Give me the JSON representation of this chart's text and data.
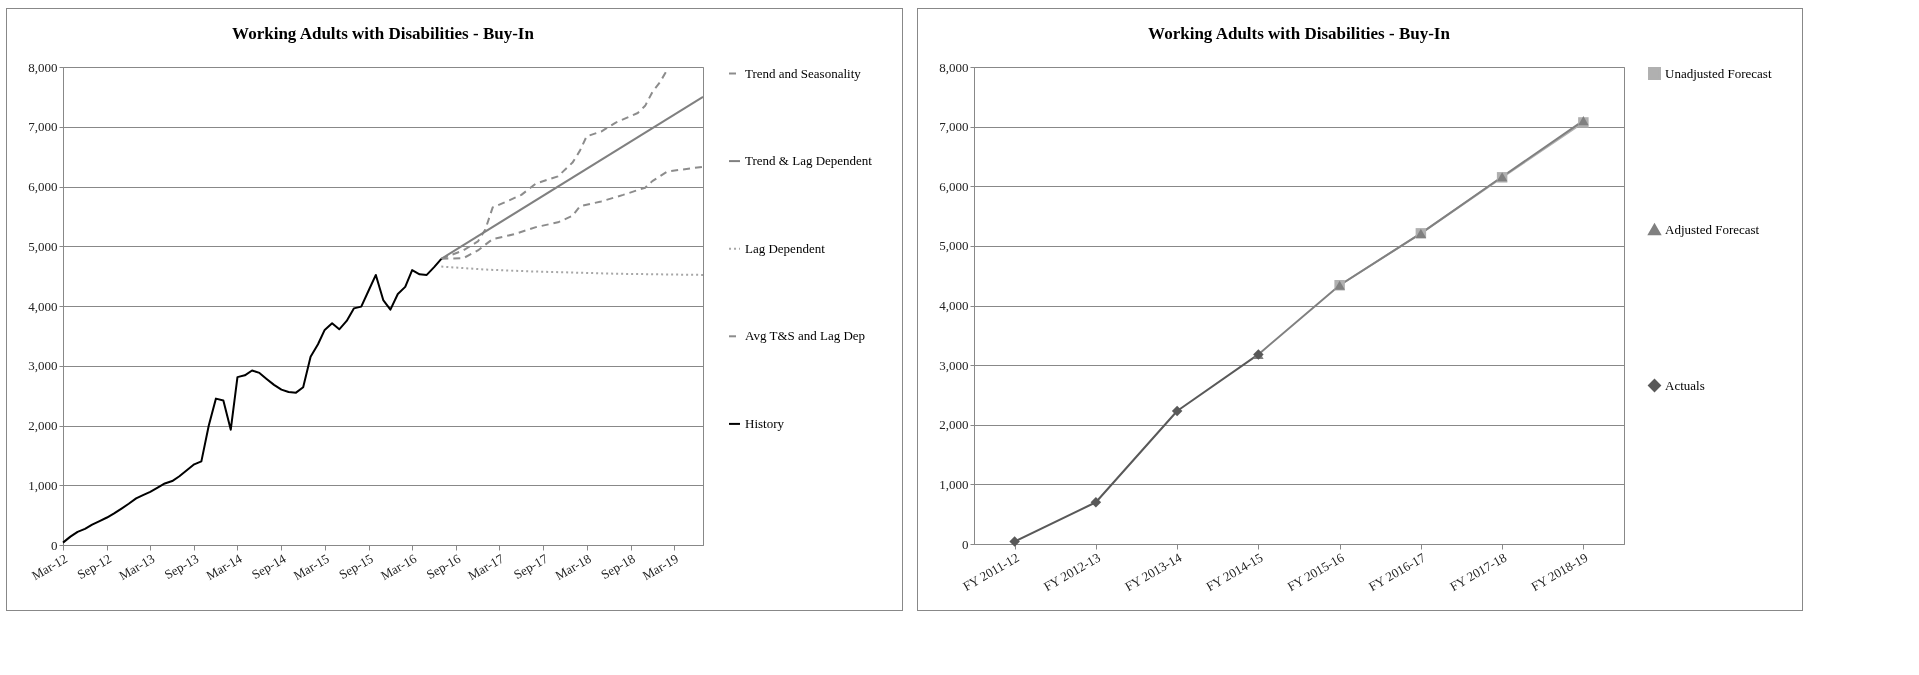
{
  "chart_data": [
    {
      "type": "line",
      "title": "Working Adults with Disabilities - Buy-In",
      "xlim": [
        "2012-03",
        "2019-07"
      ],
      "xticks": [
        {
          "value": "2012-03",
          "label": "Mar-12"
        },
        {
          "value": "2012-09",
          "label": "Sep-12"
        },
        {
          "value": "2013-03",
          "label": "Mar-13"
        },
        {
          "value": "2013-09",
          "label": "Sep-13"
        },
        {
          "value": "2014-03",
          "label": "Mar-14"
        },
        {
          "value": "2014-09",
          "label": "Sep-14"
        },
        {
          "value": "2015-03",
          "label": "Mar-15"
        },
        {
          "value": "2015-09",
          "label": "Sep-15"
        },
        {
          "value": "2016-03",
          "label": "Mar-16"
        },
        {
          "value": "2016-09",
          "label": "Sep-16"
        },
        {
          "value": "2017-03",
          "label": "Mar-17"
        },
        {
          "value": "2017-09",
          "label": "Sep-17"
        },
        {
          "value": "2018-03",
          "label": "Mar-18"
        },
        {
          "value": "2018-09",
          "label": "Sep-18"
        },
        {
          "value": "2019-03",
          "label": "Mar-19"
        }
      ],
      "ylim": [
        0,
        8000
      ],
      "yticks": [
        0,
        {
          "value": 1000,
          "label": "1,000"
        },
        {
          "value": 2000,
          "label": "2,000"
        },
        {
          "value": 3000,
          "label": "3,000"
        },
        {
          "value": 4000,
          "label": "4,000"
        },
        {
          "value": 5000,
          "label": "5,000"
        },
        {
          "value": 6000,
          "label": "6,000"
        },
        {
          "value": 7000,
          "label": "7,000"
        },
        {
          "value": 8000,
          "label": "8,000"
        }
      ],
      "grid": "y",
      "legend": "right",
      "series": [
        {
          "name": "Trend and Seasonality",
          "color": "#8c8c8c",
          "line_style": "dashed",
          "x": [
            "2016-07",
            "2016-10",
            "2016-12",
            "2017-01",
            "2017-02",
            "2017-04",
            "2017-06",
            "2017-08",
            "2017-11",
            "2018-01",
            "2018-02",
            "2018-03",
            "2018-05",
            "2018-07",
            "2018-10",
            "2018-11",
            "2018-12",
            "2019-01",
            "2019-02"
          ],
          "values": [
            4790,
            4930,
            5080,
            5280,
            5650,
            5750,
            5860,
            6050,
            6170,
            6400,
            6600,
            6840,
            6920,
            7070,
            7230,
            7350,
            7580,
            7740,
            7950
          ]
        },
        {
          "name": "Trend & Lag Dependent",
          "color": "#808080",
          "line_style": "solid",
          "x": [
            "2016-07",
            "2019-07"
          ],
          "values": [
            4790,
            7500
          ]
        },
        {
          "name": "Lag Dependent",
          "color": "#a6a6a6",
          "line_style": "dotted",
          "x": [
            "2016-07",
            "2017-01",
            "2017-07",
            "2018-01",
            "2018-07",
            "2019-01",
            "2019-07"
          ],
          "values": [
            4660,
            4610,
            4580,
            4560,
            4540,
            4530,
            4520
          ]
        },
        {
          "name": "Avg T&S and Lag Dep",
          "color": "#8c8c8c",
          "line_style": "dashed",
          "x": [
            "2016-07",
            "2016-10",
            "2016-12",
            "2017-02",
            "2017-05",
            "2017-08",
            "2017-11",
            "2018-01",
            "2018-02",
            "2018-05",
            "2018-08",
            "2018-11",
            "2018-12",
            "2019-02",
            "2019-07"
          ],
          "values": [
            4790,
            4800,
            4930,
            5120,
            5200,
            5320,
            5400,
            5510,
            5670,
            5750,
            5860,
            5980,
            6090,
            6250,
            6330
          ]
        },
        {
          "name": "History",
          "color": "#000000",
          "line_style": "solid",
          "x": [
            "2012-03",
            "2012-04",
            "2012-05",
            "2012-06",
            "2012-07",
            "2012-08",
            "2012-09",
            "2012-10",
            "2012-11",
            "2012-12",
            "2013-01",
            "2013-02",
            "2013-03",
            "2013-04",
            "2013-05",
            "2013-06",
            "2013-07",
            "2013-08",
            "2013-09",
            "2013-10",
            "2013-11",
            "2013-12",
            "2014-01",
            "2014-02",
            "2014-03",
            "2014-04",
            "2014-05",
            "2014-06",
            "2014-07",
            "2014-08",
            "2014-09",
            "2014-10",
            "2014-11",
            "2014-12",
            "2015-01",
            "2015-02",
            "2015-03",
            "2015-04",
            "2015-05",
            "2015-06",
            "2015-07",
            "2015-08",
            "2015-09",
            "2015-10",
            "2015-11",
            "2015-12",
            "2016-01",
            "2016-02",
            "2016-03",
            "2016-04",
            "2016-05",
            "2016-06",
            "2016-07"
          ],
          "values": [
            40,
            140,
            220,
            270,
            340,
            400,
            460,
            530,
            610,
            690,
            780,
            840,
            890,
            960,
            1030,
            1070,
            1150,
            1250,
            1350,
            1400,
            2000,
            2450,
            2420,
            1930,
            2810,
            2840,
            2920,
            2880,
            2780,
            2680,
            2600,
            2560,
            2550,
            2640,
            3150,
            3360,
            3600,
            3710,
            3610,
            3750,
            3960,
            3990,
            4260,
            4520,
            4100,
            3940,
            4200,
            4320,
            4600,
            4530,
            4520,
            4650,
            4790
          ]
        }
      ]
    },
    {
      "type": "line",
      "title": "Working Adults with Disabilities - Buy-In",
      "categories": [
        "FY 2011-12",
        "FY 2012-13",
        "FY 2013-14",
        "FY 2014-15",
        "FY 2015-16",
        "FY 2016-17",
        "FY 2017-18",
        "FY 2018-19"
      ],
      "ylim": [
        0,
        8000
      ],
      "yticks": [
        0,
        {
          "value": 1000,
          "label": "1,000"
        },
        {
          "value": 2000,
          "label": "2,000"
        },
        {
          "value": 3000,
          "label": "3,000"
        },
        {
          "value": 4000,
          "label": "4,000"
        },
        {
          "value": 5000,
          "label": "5,000"
        },
        {
          "value": 6000,
          "label": "6,000"
        },
        {
          "value": 7000,
          "label": "7,000"
        },
        {
          "value": 8000,
          "label": "8,000"
        }
      ],
      "grid": "y",
      "legend": "right",
      "series": [
        {
          "name": "Unadjusted Forecast",
          "color": "#b0b0b0",
          "marker": "square",
          "line_style": "solid",
          "values": [
            null,
            null,
            null,
            null,
            4340,
            5210,
            6150,
            7070
          ]
        },
        {
          "name": "Adjusted Forecast",
          "color": "#808080",
          "marker": "triangle",
          "line_style": "solid",
          "values": [
            null,
            null,
            null,
            3180,
            4340,
            5210,
            6160,
            7100
          ]
        },
        {
          "name": "Actuals",
          "color": "#595959",
          "marker": "diamond",
          "line_style": "solid",
          "values": [
            40,
            700,
            2230,
            3180,
            null,
            null,
            null,
            null
          ]
        }
      ]
    }
  ]
}
